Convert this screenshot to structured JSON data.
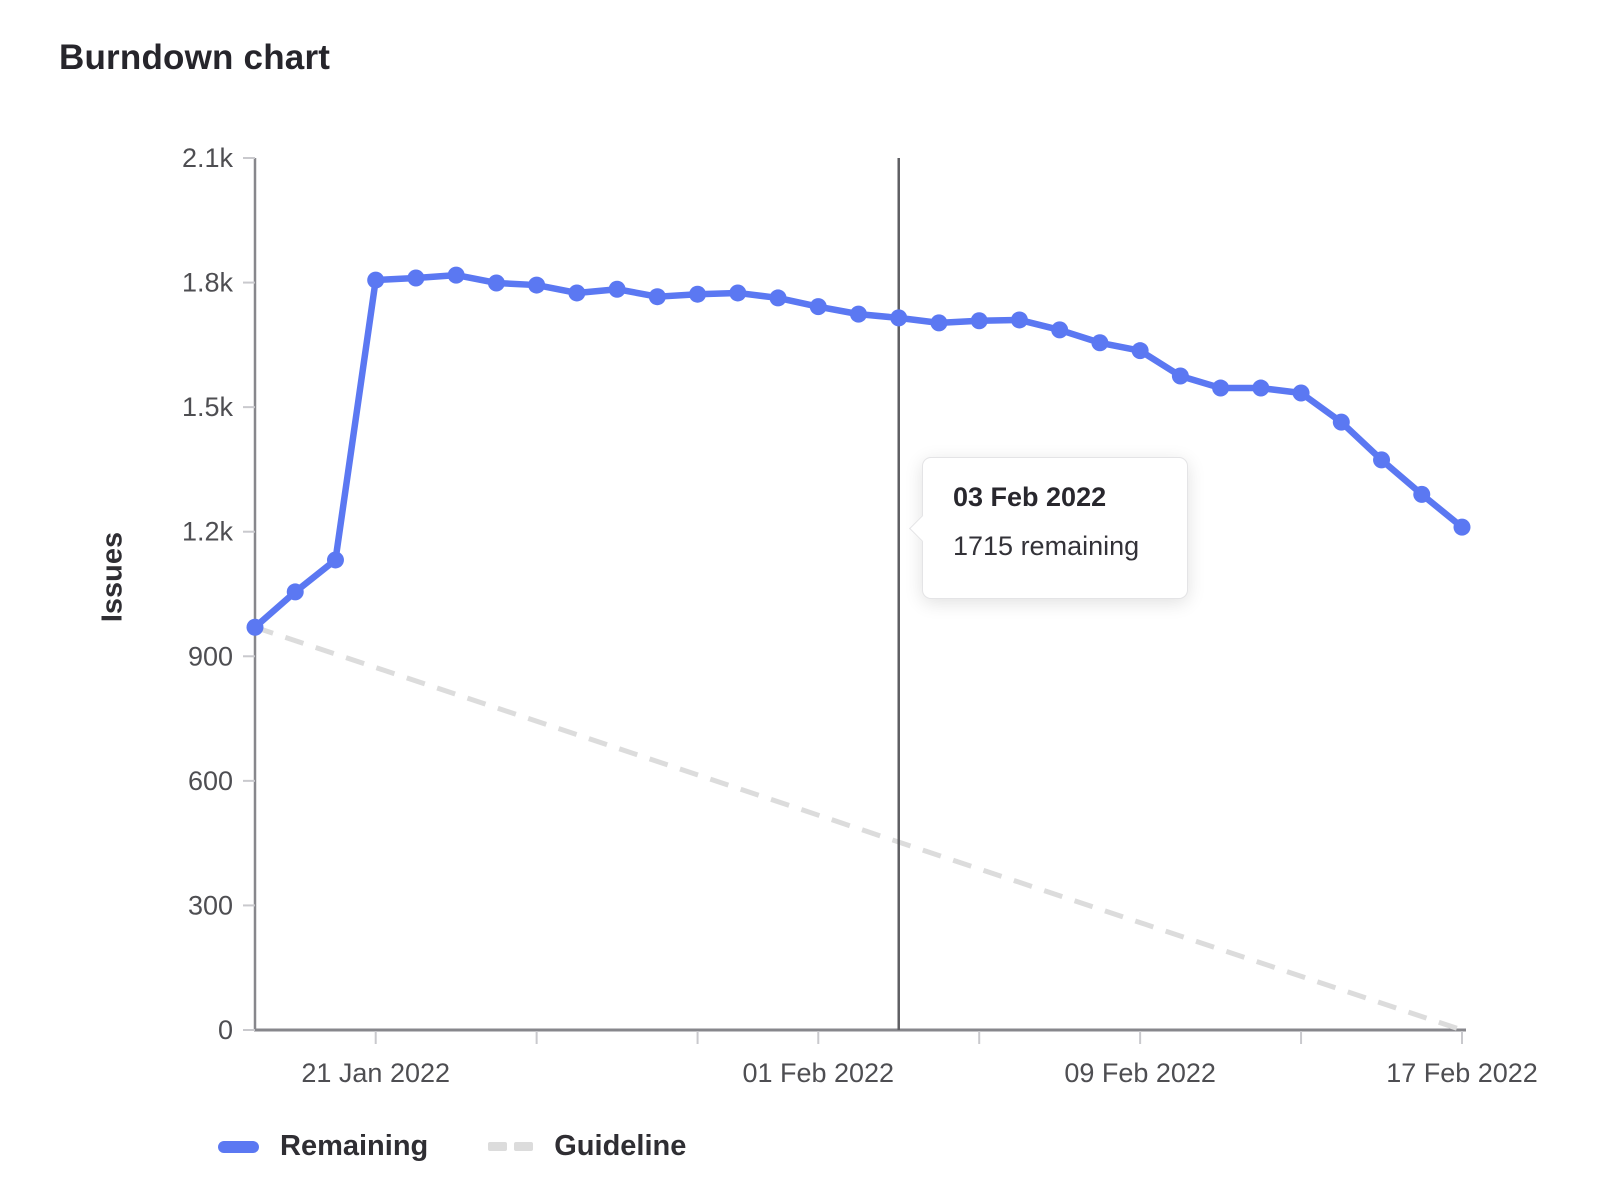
{
  "page": {
    "title": "Burndown chart"
  },
  "chart_data": {
    "type": "line",
    "title": "Burndown chart",
    "xlabel": "",
    "ylabel": "Issues",
    "ylim": [
      0,
      2100
    ],
    "grid": false,
    "legend_position": "bottom-left",
    "x_range": [
      "18 Jan 2022",
      "17 Feb 2022"
    ],
    "x": [
      "18 Jan 2022",
      "19 Jan 2022",
      "20 Jan 2022",
      "21 Jan 2022",
      "22 Jan 2022",
      "23 Jan 2022",
      "24 Jan 2022",
      "25 Jan 2022",
      "26 Jan 2022",
      "27 Jan 2022",
      "28 Jan 2022",
      "29 Jan 2022",
      "30 Jan 2022",
      "31 Jan 2022",
      "01 Feb 2022",
      "02 Feb 2022",
      "03 Feb 2022",
      "04 Feb 2022",
      "05 Feb 2022",
      "06 Feb 2022",
      "07 Feb 2022",
      "08 Feb 2022",
      "09 Feb 2022",
      "10 Feb 2022",
      "11 Feb 2022",
      "12 Feb 2022",
      "13 Feb 2022",
      "14 Feb 2022",
      "15 Feb 2022",
      "16 Feb 2022",
      "17 Feb 2022"
    ],
    "y_ticks": [
      {
        "label": "0",
        "value": 0
      },
      {
        "label": "300",
        "value": 300
      },
      {
        "label": "600",
        "value": 600
      },
      {
        "label": "900",
        "value": 900
      },
      {
        "label": "1.2k",
        "value": 1200
      },
      {
        "label": "1.5k",
        "value": 1500
      },
      {
        "label": "1.8k",
        "value": 1800
      },
      {
        "label": "2.1k",
        "value": 2100
      }
    ],
    "x_ticks": [
      {
        "label": "21 Jan 2022",
        "day": 3
      },
      {
        "label": "01 Feb 2022",
        "day": 14
      },
      {
        "label": "09 Feb 2022",
        "day": 22
      },
      {
        "label": "17 Feb 2022",
        "day": 30
      }
    ],
    "x_minor_tick_days": [
      3,
      7,
      11,
      14,
      18,
      22,
      26,
      30
    ],
    "series": [
      {
        "name": "Remaining",
        "style": "solid",
        "color": "#5b78f2",
        "values": [
          970,
          1055,
          1132,
          1806,
          1811,
          1818,
          1799,
          1794,
          1775,
          1784,
          1766,
          1772,
          1775,
          1763,
          1742,
          1724,
          1715,
          1703,
          1708,
          1710,
          1686,
          1655,
          1636,
          1575,
          1546,
          1546,
          1534,
          1464,
          1373,
          1290,
          1211
        ]
      },
      {
        "name": "Guideline",
        "style": "dashed",
        "color": "#dcdcdc",
        "points": [
          {
            "day": 0,
            "value": 970
          },
          {
            "day": 30,
            "value": 0
          }
        ]
      }
    ],
    "hover": {
      "day_index": 16,
      "line_color": "#5f5f63"
    },
    "tooltip": {
      "date": "03 Feb 2022",
      "text": "1715 remaining",
      "value": 1715
    },
    "axis_color": "#87878c",
    "tick_color": "#c9c9cd",
    "tick_label_color": "#4e4e52"
  }
}
